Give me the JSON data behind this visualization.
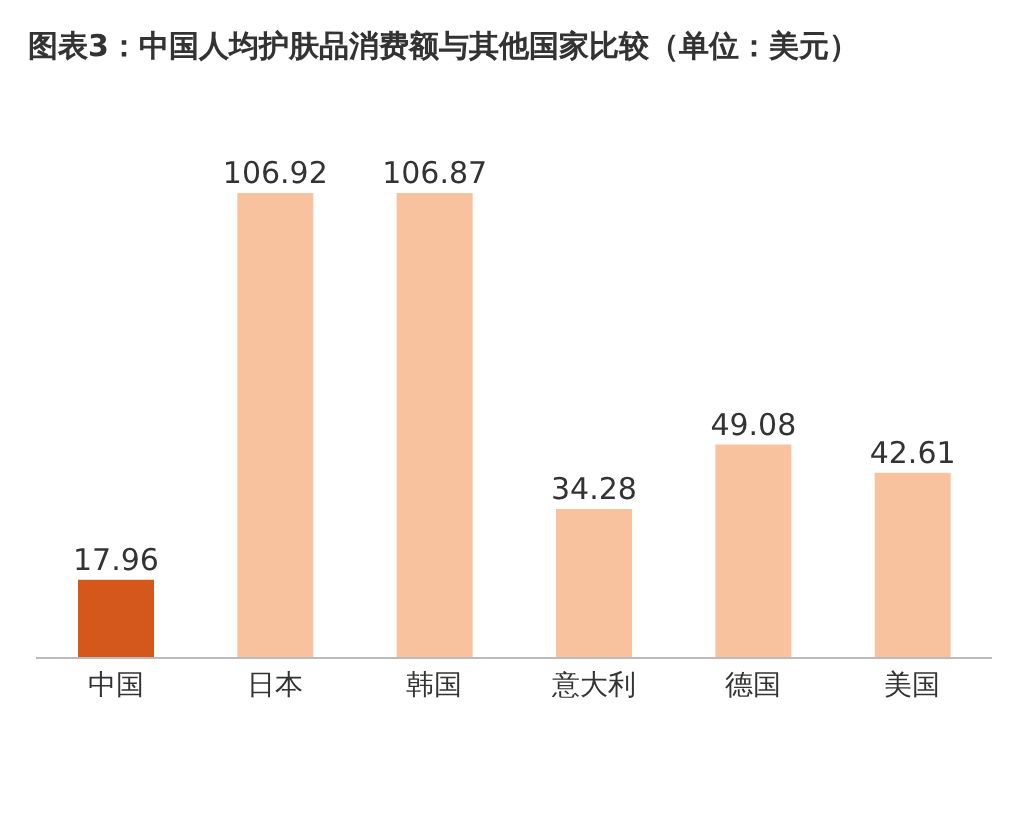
{
  "chart_data": {
    "type": "bar",
    "title": "图表3：中国人均护肤品消费额与其他国家比较（单位：美元）",
    "categories": [
      "中国",
      "日本",
      "韩国",
      "意大利",
      "德国",
      "美国"
    ],
    "values": [
      17.96,
      106.92,
      106.87,
      34.28,
      49.08,
      42.61
    ],
    "colors": [
      "#d4581c",
      "#f8c29e",
      "#f8c29e",
      "#f8c29e",
      "#f8c29e",
      "#f8c29e"
    ],
    "data_labels": true
  }
}
